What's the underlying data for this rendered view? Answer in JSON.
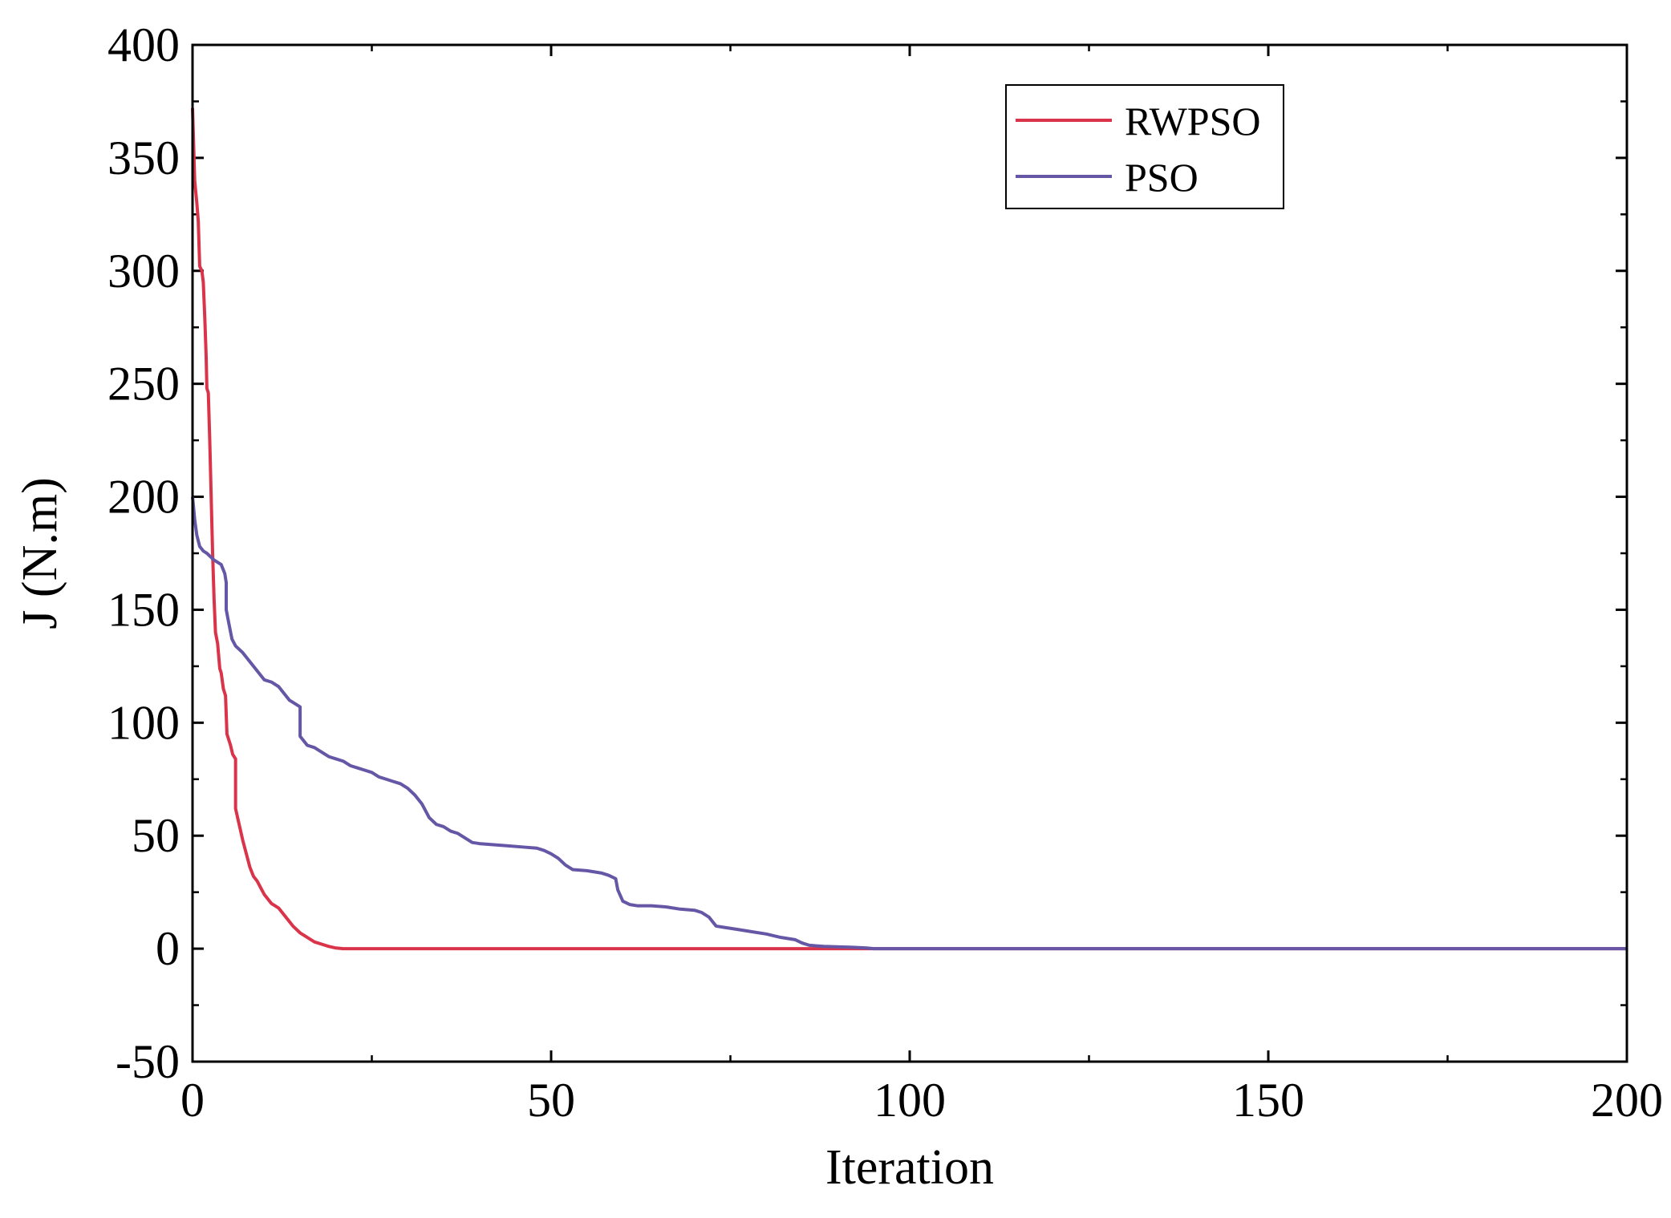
{
  "chart_data": {
    "type": "line",
    "title": "",
    "xlabel": "Iteration",
    "ylabel": "J (N.m)",
    "xlim": [
      0,
      200
    ],
    "ylim": [
      -50,
      400
    ],
    "xticks": [
      0,
      50,
      100,
      150,
      200
    ],
    "yticks": [
      -50,
      0,
      50,
      100,
      150,
      200,
      250,
      300,
      350,
      400
    ],
    "xtick_labels": [
      "0",
      "50",
      "100",
      "150",
      "200"
    ],
    "ytick_labels": [
      "-50",
      "0",
      "50",
      "100",
      "150",
      "200",
      "250",
      "300",
      "350",
      "400"
    ],
    "grid": false,
    "legend_position": "top-right",
    "series": [
      {
        "name": "RWPSO",
        "color": "#d9344a",
        "points": [
          [
            0,
            372
          ],
          [
            0.3,
            340
          ],
          [
            0.6,
            330
          ],
          [
            0.8,
            322
          ],
          [
            1.0,
            302
          ],
          [
            1.3,
            300
          ],
          [
            1.5,
            295
          ],
          [
            1.7,
            280
          ],
          [
            1.9,
            262
          ],
          [
            2.0,
            248
          ],
          [
            2.2,
            246
          ],
          [
            2.4,
            225
          ],
          [
            2.6,
            200
          ],
          [
            2.8,
            175
          ],
          [
            3.0,
            155
          ],
          [
            3.2,
            140
          ],
          [
            3.5,
            135
          ],
          [
            3.8,
            124
          ],
          [
            4.0,
            122
          ],
          [
            4.3,
            115
          ],
          [
            4.6,
            112
          ],
          [
            4.8,
            95
          ],
          [
            5.0,
            93
          ],
          [
            5.3,
            90
          ],
          [
            5.6,
            86
          ],
          [
            6.0,
            84
          ],
          [
            6.0,
            62
          ],
          [
            6.5,
            55
          ],
          [
            7.0,
            48
          ],
          [
            7.5,
            42
          ],
          [
            8.0,
            36
          ],
          [
            8.5,
            32
          ],
          [
            9.0,
            30
          ],
          [
            9.5,
            27
          ],
          [
            10.0,
            24
          ],
          [
            10.5,
            22
          ],
          [
            11.0,
            20
          ],
          [
            11.5,
            19
          ],
          [
            12.0,
            18
          ],
          [
            12.5,
            16
          ],
          [
            13.0,
            14
          ],
          [
            13.5,
            12
          ],
          [
            14.0,
            10
          ],
          [
            15.0,
            7
          ],
          [
            16.0,
            5
          ],
          [
            17.0,
            3
          ],
          [
            18.0,
            2
          ],
          [
            19.0,
            1
          ],
          [
            20.0,
            0.3
          ],
          [
            21.0,
            0
          ],
          [
            200,
            0
          ]
        ]
      },
      {
        "name": "PSO",
        "color": "#6656a6",
        "points": [
          [
            0,
            200
          ],
          [
            0.3,
            190
          ],
          [
            0.6,
            183
          ],
          [
            1.0,
            178
          ],
          [
            1.5,
            176
          ],
          [
            2.0,
            175
          ],
          [
            3.0,
            172
          ],
          [
            4.0,
            170
          ],
          [
            4.5,
            166
          ],
          [
            4.7,
            162
          ],
          [
            4.7,
            150
          ],
          [
            5.0,
            145
          ],
          [
            5.5,
            137
          ],
          [
            6.0,
            134
          ],
          [
            7.0,
            131
          ],
          [
            8.0,
            127
          ],
          [
            9.0,
            123
          ],
          [
            10.0,
            119
          ],
          [
            11.0,
            118
          ],
          [
            12.0,
            116
          ],
          [
            12.5,
            114
          ],
          [
            13.0,
            112
          ],
          [
            13.5,
            110
          ],
          [
            14.0,
            109
          ],
          [
            15.0,
            107
          ],
          [
            15.0,
            94
          ],
          [
            15.5,
            92
          ],
          [
            16.0,
            90
          ],
          [
            17.0,
            89
          ],
          [
            18.0,
            87
          ],
          [
            19.0,
            85
          ],
          [
            20.0,
            84
          ],
          [
            21.0,
            83
          ],
          [
            22.0,
            81
          ],
          [
            23.0,
            80
          ],
          [
            24.0,
            79
          ],
          [
            25.0,
            78
          ],
          [
            26.0,
            76
          ],
          [
            27.0,
            75
          ],
          [
            28.0,
            74
          ],
          [
            29.0,
            73
          ],
          [
            30.0,
            71
          ],
          [
            31.0,
            68
          ],
          [
            32.0,
            64
          ],
          [
            33.0,
            58
          ],
          [
            34.0,
            55
          ],
          [
            35.0,
            54
          ],
          [
            36.0,
            52
          ],
          [
            37.0,
            51
          ],
          [
            38.0,
            49
          ],
          [
            39.0,
            47
          ],
          [
            40.0,
            46.5
          ],
          [
            42.0,
            46
          ],
          [
            44.0,
            45.5
          ],
          [
            46.0,
            45
          ],
          [
            48.0,
            44.5
          ],
          [
            49.0,
            43.5
          ],
          [
            50.0,
            42
          ],
          [
            51.0,
            40
          ],
          [
            52.0,
            37
          ],
          [
            53.0,
            35
          ],
          [
            55.0,
            34.5
          ],
          [
            57.0,
            33.5
          ],
          [
            58.0,
            32.5
          ],
          [
            59.0,
            31
          ],
          [
            59.3,
            26
          ],
          [
            60.0,
            21
          ],
          [
            61.0,
            19.5
          ],
          [
            62.0,
            19
          ],
          [
            64.0,
            19
          ],
          [
            66.0,
            18.5
          ],
          [
            68.0,
            17.5
          ],
          [
            70.0,
            17
          ],
          [
            71.0,
            16
          ],
          [
            72.0,
            14
          ],
          [
            73.0,
            10
          ],
          [
            74.0,
            9.5
          ],
          [
            76.0,
            8.5
          ],
          [
            78.0,
            7.5
          ],
          [
            80.0,
            6.5
          ],
          [
            82.0,
            5
          ],
          [
            84.0,
            4
          ],
          [
            85.0,
            2.5
          ],
          [
            86.0,
            1.5
          ],
          [
            88.0,
            1
          ],
          [
            92.0,
            0.6
          ],
          [
            94.0,
            0.3
          ],
          [
            95.0,
            0
          ],
          [
            200,
            0
          ]
        ]
      }
    ]
  }
}
